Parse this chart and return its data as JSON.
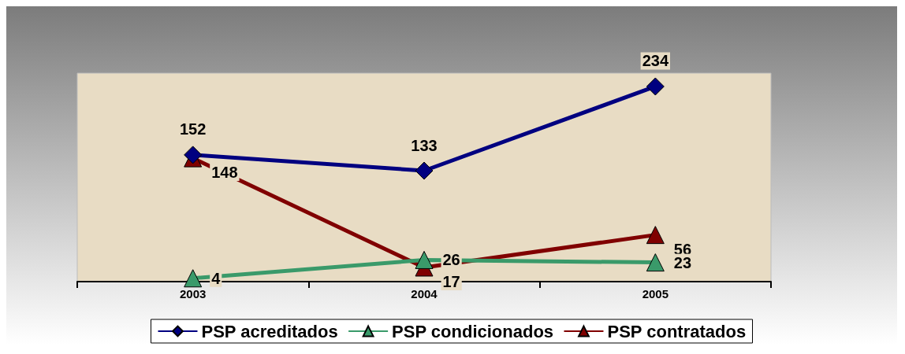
{
  "chart_data": {
    "type": "line",
    "categories": [
      "2003",
      "2004",
      "2005"
    ],
    "series": [
      {
        "name": "PSP acreditados",
        "color": "#000080",
        "marker": "diamond",
        "values": [
          152,
          133,
          234
        ]
      },
      {
        "name": "PSP condicionados",
        "color": "#3a9a6a",
        "marker": "triangle",
        "values": [
          4,
          26,
          23
        ]
      },
      {
        "name": "PSP contratados",
        "color": "#800000",
        "marker": "triangle",
        "values": [
          148,
          17,
          56
        ]
      }
    ],
    "data_labels": true,
    "grid": false,
    "legend": "bottom"
  }
}
